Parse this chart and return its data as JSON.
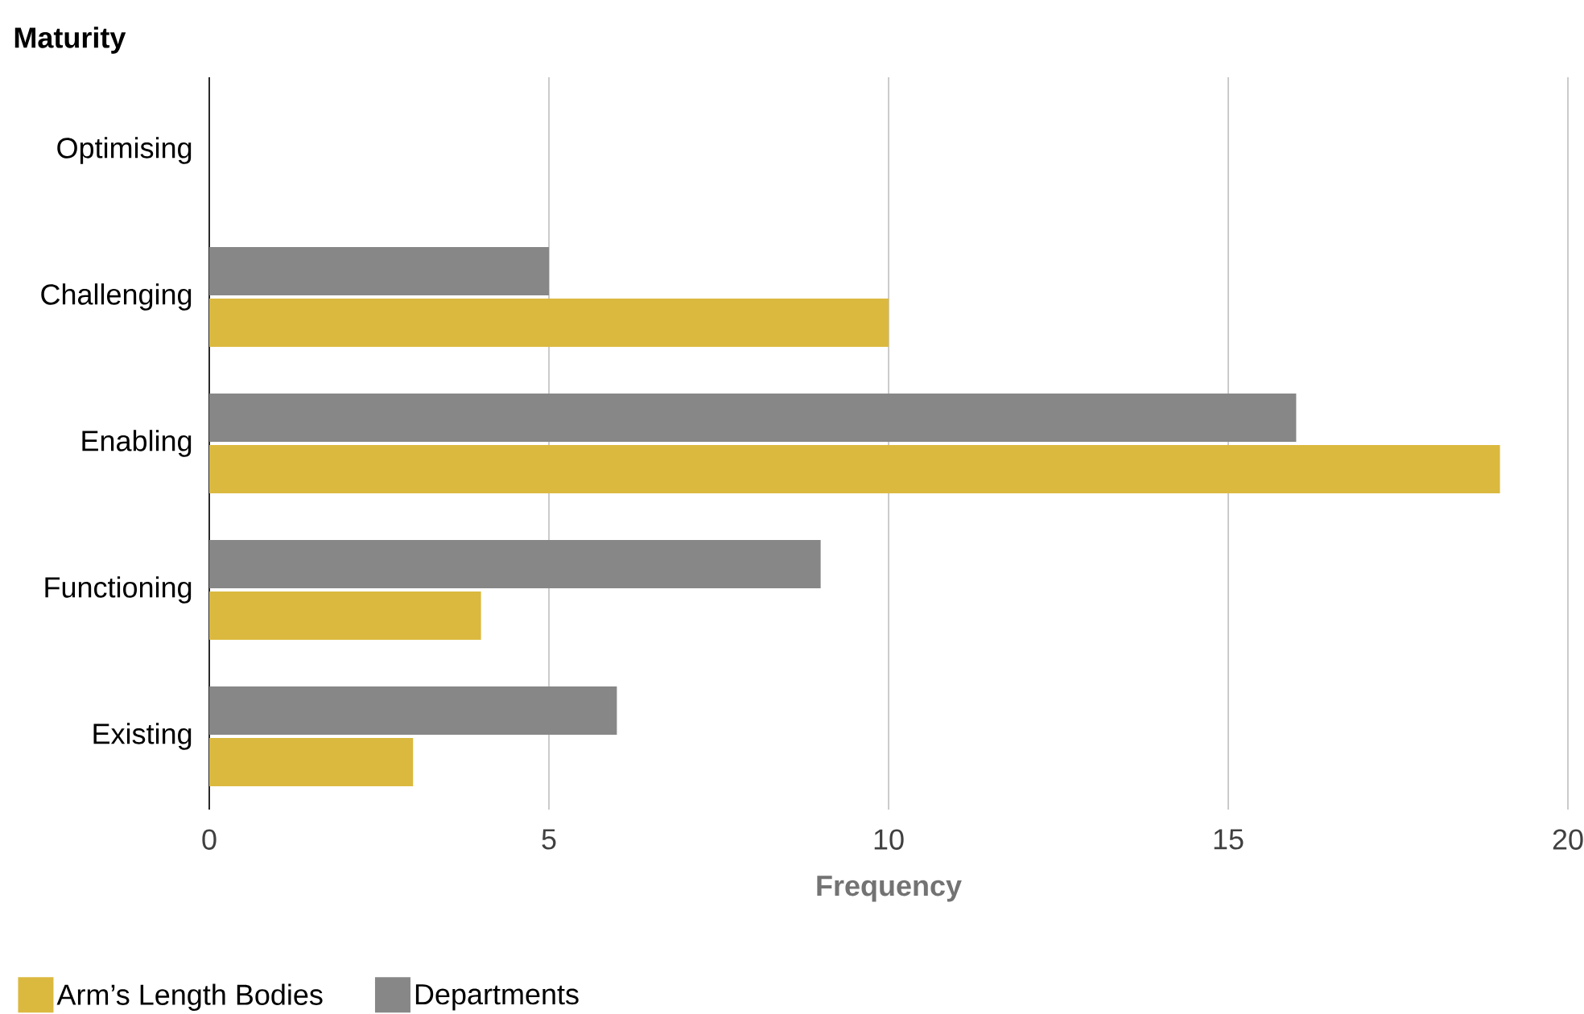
{
  "chart_data": {
    "type": "bar",
    "orientation": "horizontal",
    "ylabel": "Maturity",
    "xlabel": "Frequency",
    "categories": [
      "Optimising",
      "Challenging",
      "Enabling",
      "Functioning",
      "Existing"
    ],
    "series": [
      {
        "name": "Arm’s Length Bodies",
        "color": "#dbb93f",
        "values": [
          0,
          10,
          19,
          4,
          3
        ]
      },
      {
        "name": "Departments",
        "color": "#878787",
        "values": [
          0,
          5,
          16,
          9,
          6
        ]
      }
    ],
    "xlim": [
      0,
      20
    ],
    "xticks": [
      0,
      5,
      10,
      15,
      20
    ],
    "grid": "x",
    "legend": "bottom left"
  }
}
